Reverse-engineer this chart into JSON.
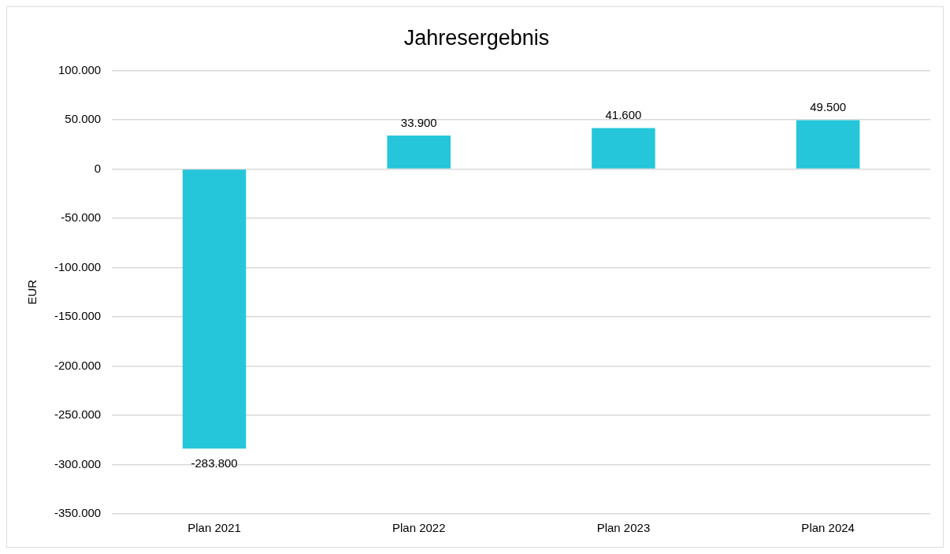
{
  "chart_data": {
    "type": "bar",
    "title": "Jahresergebnis",
    "ylabel": "EUR",
    "categories": [
      "Plan 2021",
      "Plan 2022",
      "Plan 2023",
      "Plan 2024"
    ],
    "values": [
      -283800,
      33900,
      41600,
      49500
    ],
    "value_labels": [
      "-283.800",
      "33.900",
      "41.600",
      "49.500"
    ],
    "color": "#26c6da",
    "ylim": [
      -350000,
      100000
    ],
    "yticks": [
      {
        "value": -350000,
        "label": "-350.000"
      },
      {
        "value": -300000,
        "label": "-300.000"
      },
      {
        "value": -250000,
        "label": "-250.000"
      },
      {
        "value": -200000,
        "label": "-200.000"
      },
      {
        "value": -150000,
        "label": "-150.000"
      },
      {
        "value": -100000,
        "label": "-100.000"
      },
      {
        "value": -50000,
        "label": "-50.000"
      },
      {
        "value": 0,
        "label": "0"
      },
      {
        "value": 50000,
        "label": "50.000"
      },
      {
        "value": 100000,
        "label": "100.000"
      }
    ],
    "grid": "y"
  }
}
